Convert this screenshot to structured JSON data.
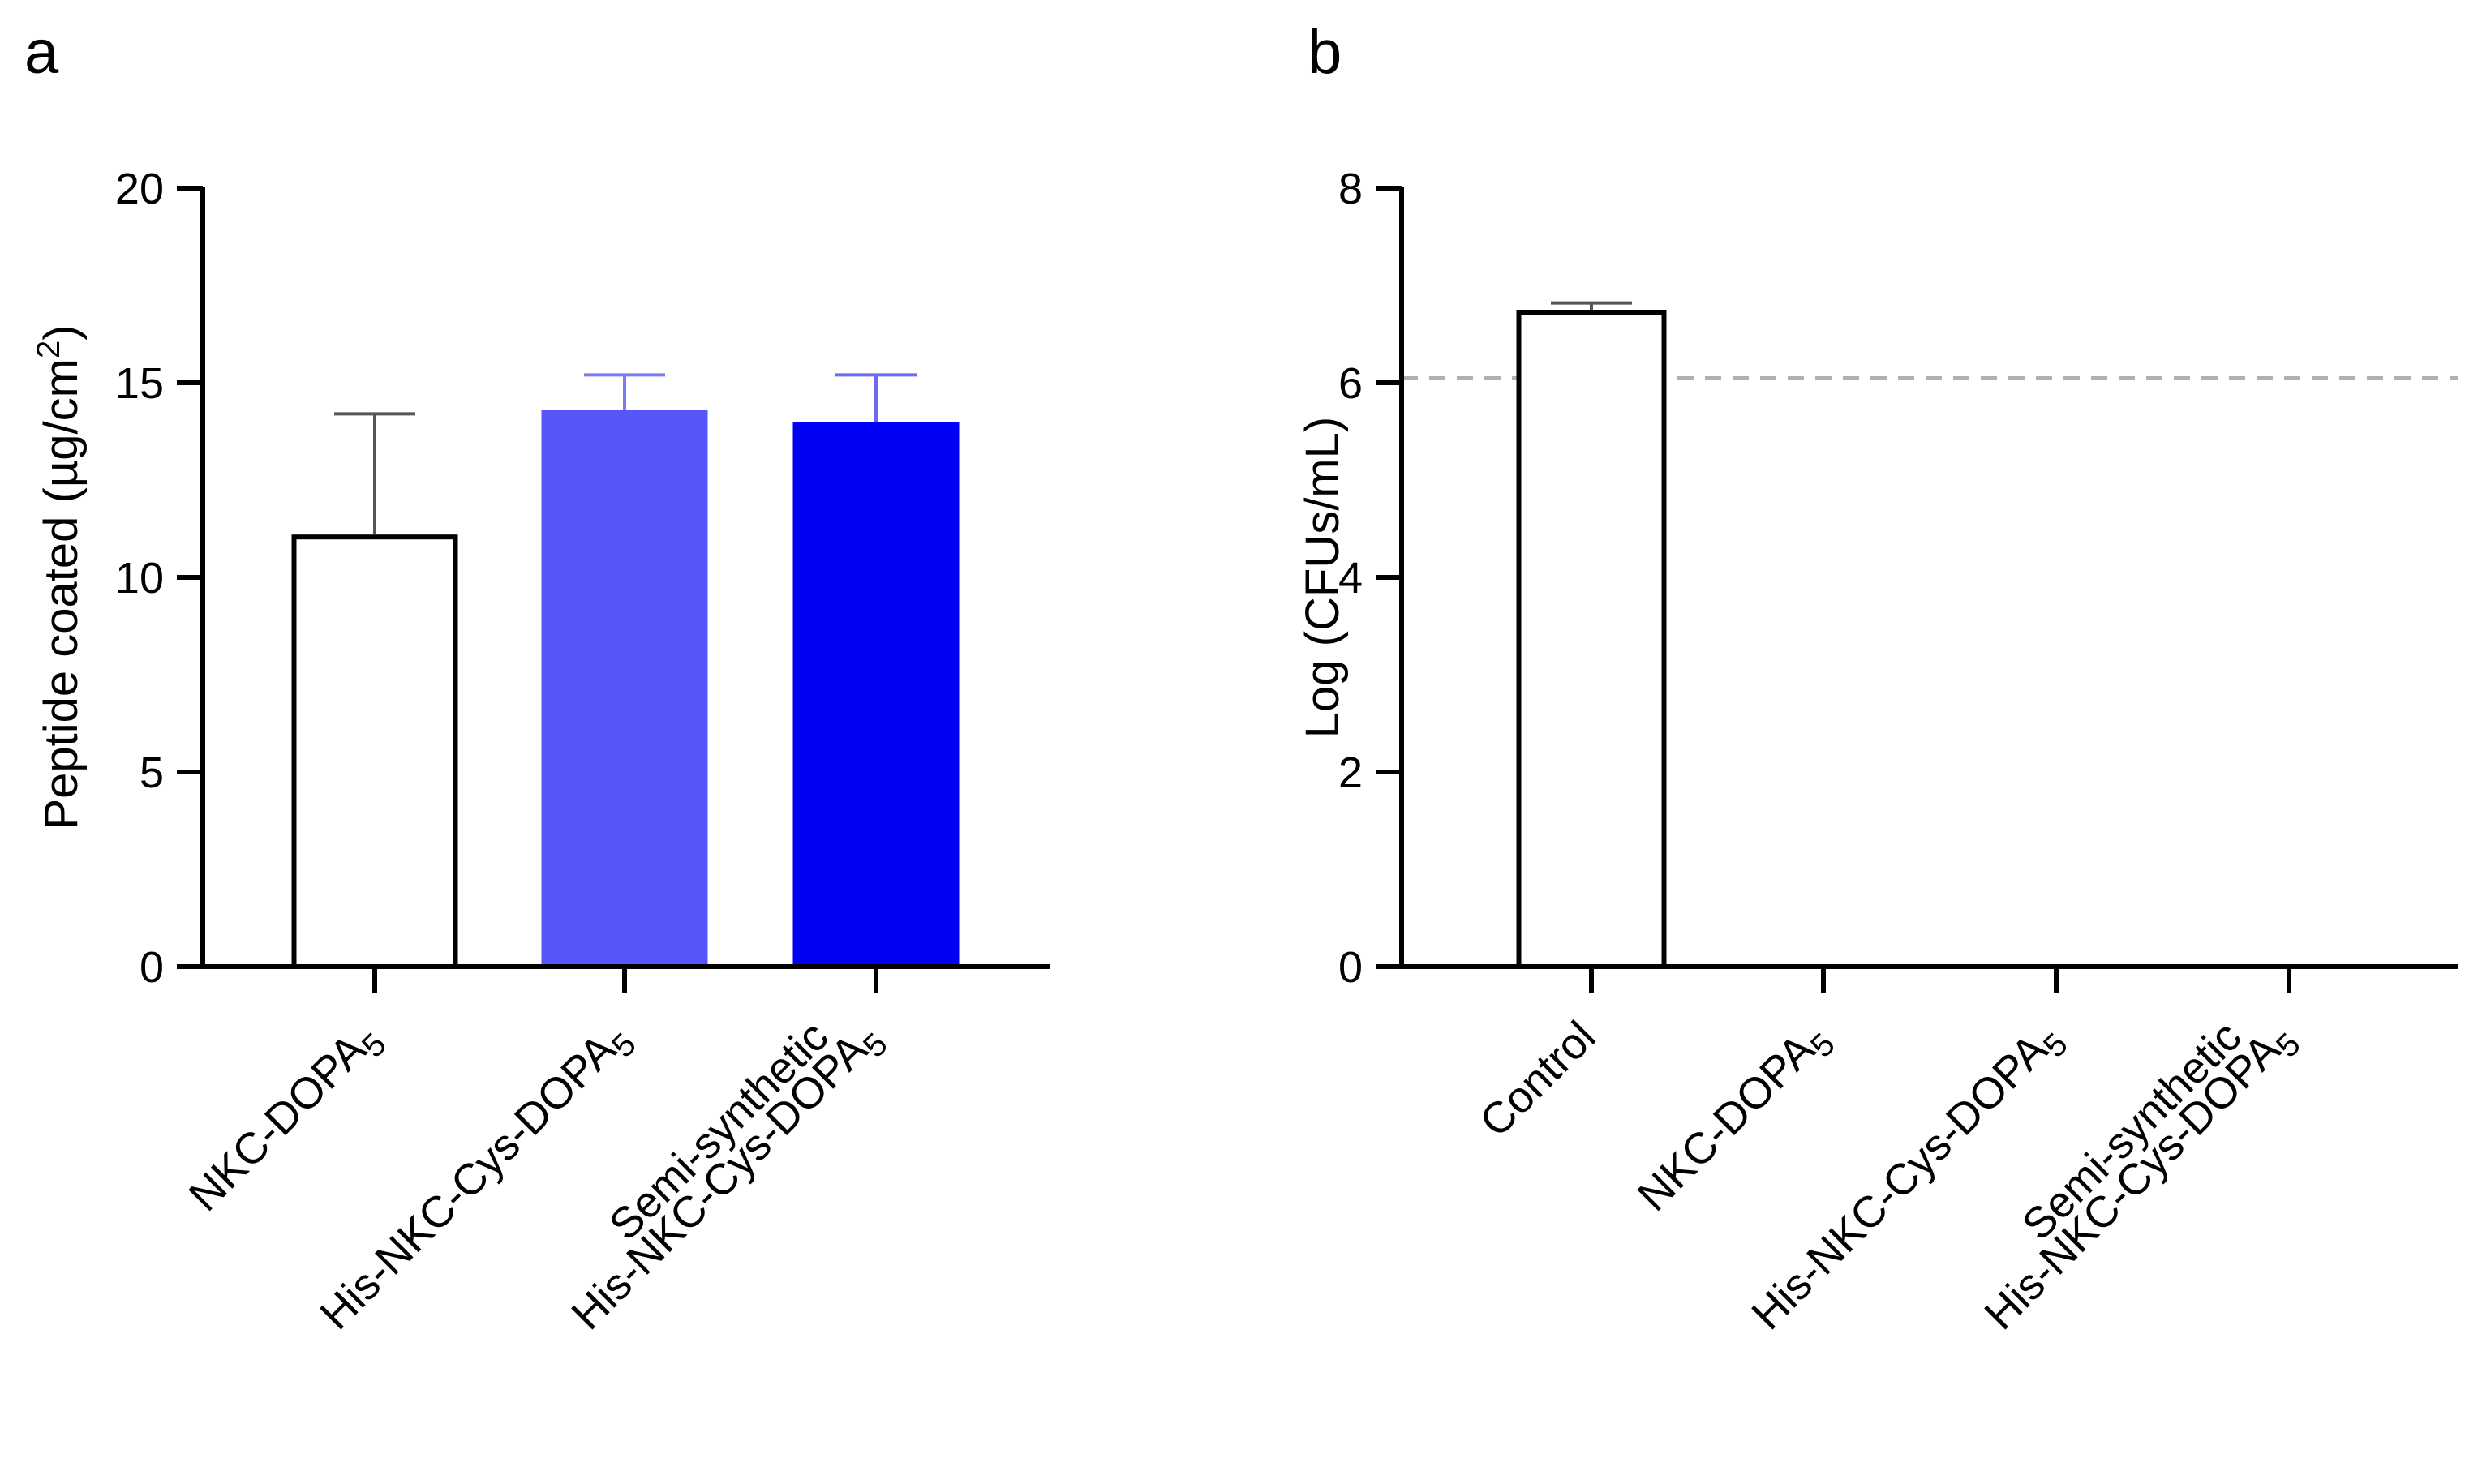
{
  "chart_data": [
    {
      "type": "bar",
      "panel_label": "a",
      "ylabel": "Peptide coated (µg/cm",
      "ylabel_superscript": "2",
      "ylabel_close": ")",
      "ylim": [
        0,
        20
      ],
      "yticks": [
        0,
        5,
        10,
        15,
        20
      ],
      "categories": [
        {
          "lines": [
            {
              "main": "NKC-DOPA",
              "sub": "5"
            }
          ]
        },
        {
          "lines": [
            {
              "main": "His-NKC-Cys-DOPA",
              "sub": "5"
            }
          ]
        },
        {
          "lines": [
            {
              "main": "Semi-synthetic",
              "sub": ""
            },
            {
              "main": "His-NKC-Cys-DOPA",
              "sub": "5"
            }
          ]
        }
      ],
      "values": [
        11.1,
        14.3,
        14.0
      ],
      "errors": [
        3.1,
        0.9,
        1.2
      ],
      "bar_fills": [
        "#ffffff",
        "#5757f9",
        "#0000f4"
      ],
      "bar_strokes": [
        "#000000",
        "#5757f9",
        "#0000f4"
      ],
      "error_colors": [
        "#555555",
        "#7a7af5",
        "#6a6af2"
      ]
    },
    {
      "type": "bar",
      "panel_label": "b",
      "ylabel": "Log (CFUs/mL)",
      "ylim": [
        0,
        8
      ],
      "yticks": [
        0,
        2,
        4,
        6,
        8
      ],
      "categories": [
        {
          "lines": [
            {
              "main": "Control",
              "sub": ""
            }
          ]
        },
        {
          "lines": [
            {
              "main": "NKC-DOPA",
              "sub": "5"
            }
          ]
        },
        {
          "lines": [
            {
              "main": "His-NKC-Cys-DOPA",
              "sub": "5"
            }
          ]
        },
        {
          "lines": [
            {
              "main": "Semi-synthetic",
              "sub": ""
            },
            {
              "main": "His-NKC-Cys-DOPA",
              "sub": "5"
            }
          ]
        }
      ],
      "values": [
        6.75,
        0,
        0,
        0
      ],
      "errors": [
        0.07,
        0,
        0,
        0
      ],
      "bar_fills": [
        "#ffffff",
        "#ffffff",
        "#ffffff",
        "#ffffff"
      ],
      "bar_strokes": [
        "#000000",
        "#000000",
        "#000000",
        "#000000"
      ],
      "error_colors": [
        "#555555",
        "#555555",
        "#555555",
        "#555555"
      ],
      "reference_line": {
        "value": 6.05,
        "color": "#b0b0b0",
        "style": "dashed"
      }
    }
  ]
}
